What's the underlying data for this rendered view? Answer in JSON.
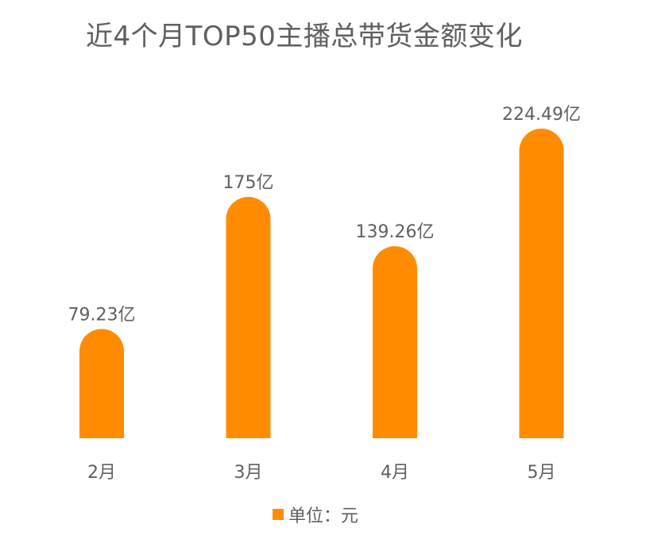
{
  "chart_data": {
    "type": "bar",
    "title": "近4个月TOP50主播总带货金额变化",
    "categories": [
      "2月",
      "3月",
      "4月",
      "5月"
    ],
    "values": [
      79.23,
      175,
      139.26,
      224.49
    ],
    "data_labels": [
      "79.23亿",
      "175亿",
      "139.26亿",
      "224.49亿"
    ],
    "legend": "单位：元",
    "legend_position": "bottom",
    "grid": false,
    "ylim": [
      0,
      224.49
    ],
    "colors": {
      "bar": "#ff8c00",
      "text": "#5f5f5f"
    }
  }
}
